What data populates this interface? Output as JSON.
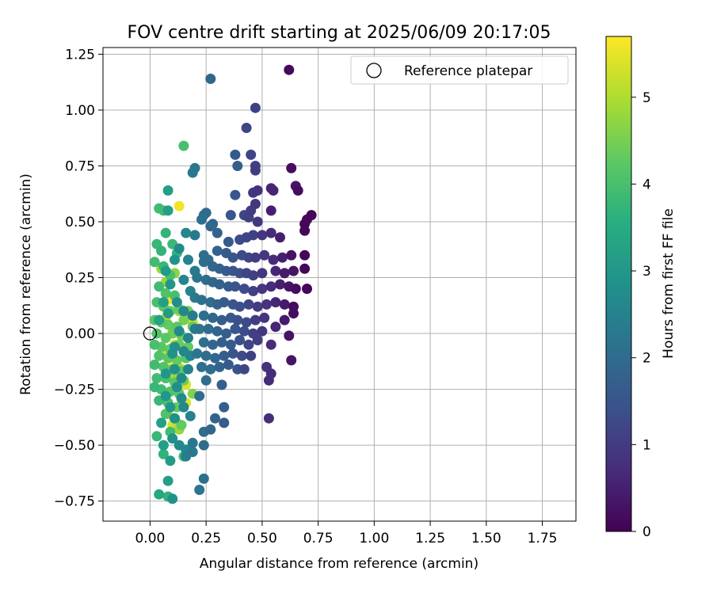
{
  "chart_data": {
    "type": "scatter",
    "title": "FOV centre drift starting at 2025/06/09 20:17:05",
    "xlabel": "Angular distance from reference (arcmin)",
    "ylabel": "Rotation from reference (arcmin)",
    "xlim": [
      -0.21,
      1.9
    ],
    "ylim": [
      -0.84,
      1.28
    ],
    "xticks": [
      0.0,
      0.25,
      0.5,
      0.75,
      1.0,
      1.25,
      1.5,
      1.75
    ],
    "xtick_labels": [
      "0.00",
      "0.25",
      "0.50",
      "0.75",
      "1.00",
      "1.25",
      "1.50",
      "1.75"
    ],
    "yticks": [
      -0.75,
      -0.5,
      -0.25,
      0.0,
      0.25,
      0.5,
      0.75,
      1.0,
      1.25
    ],
    "ytick_labels": [
      "−0.75",
      "−0.50",
      "−0.25",
      "0.00",
      "0.25",
      "0.50",
      "0.75",
      "1.00",
      "1.25"
    ],
    "grid": true,
    "legend": {
      "position": "top-right",
      "label": "Reference platepar"
    },
    "reference_point": {
      "x": 0.0,
      "y": 0.0
    },
    "colorbar": {
      "label": "Hours from first FF file",
      "min": 0,
      "max": 5.7,
      "ticks": [
        0,
        1,
        2,
        3,
        4,
        5
      ],
      "tick_labels": [
        "0",
        "1",
        "2",
        "3",
        "4",
        "5"
      ],
      "colormap": "viridis"
    },
    "points": [
      [
        0.62,
        1.18,
        0.15
      ],
      [
        0.27,
        1.14,
        1.9
      ],
      [
        0.47,
        1.01,
        1.1
      ],
      [
        0.43,
        0.92,
        1.2
      ],
      [
        0.38,
        0.8,
        1.6
      ],
      [
        0.45,
        0.8,
        1.2
      ],
      [
        0.39,
        0.75,
        1.7
      ],
      [
        0.47,
        0.75,
        1.1
      ],
      [
        0.47,
        0.73,
        1.0
      ],
      [
        0.63,
        0.74,
        0.2
      ],
      [
        0.65,
        0.66,
        0.3
      ],
      [
        0.66,
        0.64,
        0.2
      ],
      [
        0.55,
        0.64,
        0.6
      ],
      [
        0.54,
        0.65,
        0.6
      ],
      [
        0.48,
        0.64,
        0.8
      ],
      [
        0.46,
        0.63,
        0.9
      ],
      [
        0.38,
        0.62,
        1.5
      ],
      [
        0.47,
        0.58,
        0.9
      ],
      [
        0.45,
        0.55,
        1.0
      ],
      [
        0.44,
        0.52,
        1.1
      ],
      [
        0.48,
        0.5,
        0.9
      ],
      [
        0.54,
        0.55,
        0.5
      ],
      [
        0.36,
        0.53,
        1.5
      ],
      [
        0.42,
        0.53,
        1.2
      ],
      [
        0.25,
        0.54,
        2.0
      ],
      [
        0.23,
        0.51,
        2.1
      ],
      [
        0.28,
        0.49,
        1.9
      ],
      [
        0.3,
        0.45,
        1.8
      ],
      [
        0.35,
        0.41,
        1.6
      ],
      [
        0.4,
        0.42,
        1.3
      ],
      [
        0.43,
        0.43,
        1.2
      ],
      [
        0.46,
        0.44,
        1.1
      ],
      [
        0.5,
        0.44,
        0.9
      ],
      [
        0.54,
        0.45,
        0.7
      ],
      [
        0.58,
        0.43,
        0.5
      ],
      [
        0.72,
        0.53,
        0.1
      ],
      [
        0.7,
        0.51,
        0.1
      ],
      [
        0.69,
        0.49,
        0.1
      ],
      [
        0.69,
        0.46,
        0.1
      ],
      [
        0.3,
        0.37,
        1.8
      ],
      [
        0.34,
        0.36,
        1.6
      ],
      [
        0.37,
        0.34,
        1.5
      ],
      [
        0.41,
        0.35,
        1.3
      ],
      [
        0.44,
        0.34,
        1.2
      ],
      [
        0.47,
        0.34,
        1.0
      ],
      [
        0.51,
        0.35,
        0.9
      ],
      [
        0.55,
        0.33,
        0.7
      ],
      [
        0.59,
        0.34,
        0.5
      ],
      [
        0.63,
        0.35,
        0.3
      ],
      [
        0.69,
        0.35,
        0.1
      ],
      [
        0.26,
        0.33,
        2.0
      ],
      [
        0.24,
        0.32,
        2.1
      ],
      [
        0.28,
        0.3,
        1.9
      ],
      [
        0.31,
        0.29,
        1.8
      ],
      [
        0.34,
        0.28,
        1.6
      ],
      [
        0.37,
        0.28,
        1.5
      ],
      [
        0.4,
        0.27,
        1.4
      ],
      [
        0.43,
        0.27,
        1.2
      ],
      [
        0.46,
        0.26,
        1.1
      ],
      [
        0.5,
        0.27,
        0.9
      ],
      [
        0.56,
        0.28,
        0.6
      ],
      [
        0.6,
        0.27,
        0.4
      ],
      [
        0.64,
        0.28,
        0.3
      ],
      [
        0.69,
        0.29,
        0.1
      ],
      [
        0.21,
        0.25,
        2.2
      ],
      [
        0.25,
        0.24,
        2.0
      ],
      [
        0.28,
        0.23,
        1.9
      ],
      [
        0.31,
        0.22,
        1.8
      ],
      [
        0.35,
        0.21,
        1.6
      ],
      [
        0.38,
        0.21,
        1.5
      ],
      [
        0.42,
        0.2,
        1.3
      ],
      [
        0.46,
        0.19,
        1.1
      ],
      [
        0.5,
        0.2,
        0.9
      ],
      [
        0.54,
        0.21,
        0.7
      ],
      [
        0.58,
        0.22,
        0.5
      ],
      [
        0.62,
        0.21,
        0.3
      ],
      [
        0.65,
        0.2,
        0.2
      ],
      [
        0.7,
        0.2,
        0.1
      ],
      [
        0.2,
        0.16,
        2.3
      ],
      [
        0.23,
        0.15,
        2.1
      ],
      [
        0.27,
        0.14,
        2.0
      ],
      [
        0.3,
        0.13,
        1.8
      ],
      [
        0.33,
        0.14,
        1.7
      ],
      [
        0.37,
        0.13,
        1.5
      ],
      [
        0.4,
        0.12,
        1.4
      ],
      [
        0.44,
        0.13,
        1.2
      ],
      [
        0.48,
        0.12,
        1.0
      ],
      [
        0.52,
        0.13,
        0.8
      ],
      [
        0.56,
        0.14,
        0.6
      ],
      [
        0.6,
        0.13,
        0.4
      ],
      [
        0.64,
        0.12,
        0.2
      ],
      [
        0.24,
        0.08,
        2.1
      ],
      [
        0.28,
        0.07,
        1.9
      ],
      [
        0.32,
        0.06,
        1.7
      ],
      [
        0.36,
        0.07,
        1.6
      ],
      [
        0.39,
        0.06,
        1.4
      ],
      [
        0.43,
        0.05,
        1.3
      ],
      [
        0.47,
        0.06,
        1.0
      ],
      [
        0.51,
        0.07,
        0.8
      ],
      [
        0.56,
        0.03,
        0.6
      ],
      [
        0.6,
        0.06,
        0.4
      ],
      [
        0.64,
        0.09,
        0.2
      ],
      [
        0.22,
        0.02,
        2.2
      ],
      [
        0.26,
        0.02,
        2.0
      ],
      [
        0.3,
        0.01,
        1.8
      ],
      [
        0.34,
        0.0,
        1.7
      ],
      [
        0.38,
        0.02,
        1.5
      ],
      [
        0.42,
        0.01,
        1.3
      ],
      [
        0.46,
        0.0,
        1.1
      ],
      [
        0.5,
        0.01,
        0.9
      ],
      [
        0.62,
        -0.01,
        0.3
      ],
      [
        0.24,
        -0.04,
        2.1
      ],
      [
        0.28,
        -0.05,
        1.9
      ],
      [
        0.32,
        -0.04,
        1.7
      ],
      [
        0.36,
        -0.05,
        1.6
      ],
      [
        0.4,
        -0.03,
        1.4
      ],
      [
        0.44,
        -0.05,
        1.2
      ],
      [
        0.48,
        -0.03,
        1.0
      ],
      [
        0.54,
        -0.05,
        0.7
      ],
      [
        0.21,
        -0.09,
        2.2
      ],
      [
        0.25,
        -0.1,
        2.0
      ],
      [
        0.29,
        -0.11,
        1.9
      ],
      [
        0.33,
        -0.1,
        1.7
      ],
      [
        0.37,
        -0.09,
        1.5
      ],
      [
        0.41,
        -0.1,
        1.3
      ],
      [
        0.45,
        -0.1,
        1.1
      ],
      [
        0.23,
        -0.15,
        2.1
      ],
      [
        0.27,
        -0.16,
        2.0
      ],
      [
        0.31,
        -0.15,
        1.8
      ],
      [
        0.35,
        -0.14,
        1.6
      ],
      [
        0.39,
        -0.16,
        1.4
      ],
      [
        0.42,
        -0.16,
        1.2
      ],
      [
        0.52,
        -0.15,
        0.8
      ],
      [
        0.63,
        -0.12,
        0.3
      ],
      [
        0.54,
        -0.18,
        0.7
      ],
      [
        0.25,
        -0.21,
        2.0
      ],
      [
        0.32,
        -0.23,
        1.7
      ],
      [
        0.53,
        -0.21,
        0.7
      ],
      [
        0.22,
        -0.28,
        2.1
      ],
      [
        0.33,
        -0.33,
        1.7
      ],
      [
        0.53,
        -0.38,
        0.7
      ],
      [
        0.29,
        -0.38,
        1.8
      ],
      [
        0.33,
        -0.4,
        1.6
      ],
      [
        0.24,
        -0.44,
        2.0
      ],
      [
        0.27,
        -0.43,
        1.9
      ],
      [
        0.19,
        -0.49,
        2.2
      ],
      [
        0.24,
        -0.5,
        2.0
      ],
      [
        0.19,
        -0.53,
        2.3
      ],
      [
        0.16,
        -0.55,
        2.4
      ],
      [
        0.24,
        -0.65,
        2.1
      ],
      [
        0.22,
        -0.7,
        2.2
      ],
      [
        0.16,
        -0.52,
        2.6
      ],
      [
        0.13,
        -0.5,
        2.7
      ],
      [
        0.1,
        -0.47,
        2.9
      ],
      [
        0.18,
        -0.37,
        2.5
      ],
      [
        0.15,
        -0.33,
        2.6
      ],
      [
        0.11,
        -0.38,
        2.8
      ],
      [
        0.14,
        -0.29,
        2.7
      ],
      [
        0.09,
        -0.33,
        3.0
      ],
      [
        0.05,
        -0.4,
        3.2
      ],
      [
        0.07,
        -0.28,
        3.0
      ],
      [
        0.14,
        -0.2,
        2.7
      ],
      [
        0.11,
        -0.16,
        2.8
      ],
      [
        0.17,
        -0.16,
        2.5
      ],
      [
        0.07,
        -0.18,
        3.0
      ],
      [
        0.18,
        -0.1,
        2.5
      ],
      [
        0.15,
        -0.08,
        2.6
      ],
      [
        0.11,
        -0.06,
        2.8
      ],
      [
        0.17,
        -0.02,
        2.5
      ],
      [
        0.13,
        0.01,
        2.7
      ],
      [
        0.2,
        0.02,
        2.3
      ],
      [
        0.15,
        0.1,
        2.6
      ],
      [
        0.19,
        0.08,
        2.4
      ],
      [
        0.12,
        0.14,
        2.8
      ],
      [
        0.18,
        0.19,
        2.5
      ],
      [
        0.15,
        0.24,
        2.6
      ],
      [
        0.2,
        0.28,
        2.3
      ],
      [
        0.17,
        0.33,
        2.5
      ],
      [
        0.13,
        0.38,
        2.7
      ],
      [
        0.16,
        0.45,
        2.6
      ],
      [
        0.2,
        0.44,
        2.3
      ],
      [
        0.19,
        0.72,
        2.3
      ],
      [
        0.2,
        0.74,
        2.3
      ],
      [
        0.24,
        0.53,
        2.1
      ],
      [
        0.27,
        0.48,
        1.9
      ],
      [
        0.24,
        0.35,
        2.1
      ],
      [
        0.08,
        0.55,
        3.2
      ],
      [
        0.08,
        0.64,
        3.2
      ],
      [
        0.11,
        0.33,
        2.9
      ],
      [
        0.07,
        0.28,
        3.1
      ],
      [
        0.09,
        0.22,
        3.0
      ],
      [
        0.06,
        0.14,
        3.2
      ],
      [
        0.08,
        0.09,
        3.1
      ],
      [
        0.04,
        0.06,
        3.3
      ],
      [
        0.1,
        -0.09,
        2.9
      ],
      [
        0.12,
        -0.24,
        2.8
      ],
      [
        0.06,
        -0.5,
        3.2
      ],
      [
        0.08,
        -0.66,
        3.2
      ],
      [
        0.04,
        -0.72,
        3.4
      ],
      [
        0.1,
        -0.74,
        2.9
      ],
      [
        0.09,
        -0.57,
        3.1
      ],
      [
        0.15,
        0.84,
        4.0
      ],
      [
        0.04,
        0.56,
        3.9
      ],
      [
        0.06,
        0.55,
        3.9
      ],
      [
        0.07,
        0.45,
        3.7
      ],
      [
        0.03,
        0.4,
        3.8
      ],
      [
        0.05,
        0.37,
        3.7
      ],
      [
        0.1,
        0.4,
        3.8
      ],
      [
        0.12,
        0.36,
        3.7
      ],
      [
        0.02,
        0.32,
        3.9
      ],
      [
        0.06,
        0.3,
        3.8
      ],
      [
        0.09,
        0.26,
        4.0
      ],
      [
        0.04,
        0.21,
        3.9
      ],
      [
        0.07,
        0.18,
        4.1
      ],
      [
        0.11,
        0.17,
        4.0
      ],
      [
        0.03,
        0.14,
        4.0
      ],
      [
        0.06,
        0.12,
        4.2
      ],
      [
        0.09,
        0.1,
        4.3
      ],
      [
        0.13,
        0.11,
        4.3
      ],
      [
        0.17,
        0.1,
        4.4
      ],
      [
        0.02,
        0.06,
        4.2
      ],
      [
        0.05,
        0.05,
        4.2
      ],
      [
        0.08,
        0.04,
        4.3
      ],
      [
        0.12,
        0.03,
        4.2
      ],
      [
        0.15,
        0.06,
        4.5
      ],
      [
        0.19,
        0.03,
        4.3
      ],
      [
        0.03,
        0.0,
        4.1
      ],
      [
        0.07,
        -0.02,
        4.2
      ],
      [
        0.1,
        0.0,
        4.4
      ],
      [
        0.14,
        -0.01,
        4.4
      ],
      [
        0.02,
        -0.05,
        4.0
      ],
      [
        0.05,
        -0.06,
        4.2
      ],
      [
        0.09,
        -0.07,
        4.3
      ],
      [
        0.13,
        -0.05,
        4.4
      ],
      [
        0.17,
        -0.06,
        4.3
      ],
      [
        0.04,
        -0.1,
        4.1
      ],
      [
        0.08,
        -0.11,
        4.2
      ],
      [
        0.12,
        -0.12,
        4.3
      ],
      [
        0.16,
        -0.11,
        4.2
      ],
      [
        0.02,
        -0.14,
        3.9
      ],
      [
        0.06,
        -0.15,
        4.1
      ],
      [
        0.1,
        -0.16,
        4.2
      ],
      [
        0.14,
        -0.17,
        4.2
      ],
      [
        0.03,
        -0.2,
        3.9
      ],
      [
        0.07,
        -0.2,
        4.0
      ],
      [
        0.11,
        -0.22,
        4.2
      ],
      [
        0.15,
        -0.21,
        4.4
      ],
      [
        0.02,
        -0.24,
        3.8
      ],
      [
        0.05,
        -0.25,
        3.9
      ],
      [
        0.09,
        -0.26,
        4.1
      ],
      [
        0.13,
        -0.27,
        4.2
      ],
      [
        0.19,
        -0.27,
        4.6
      ],
      [
        0.04,
        -0.3,
        3.8
      ],
      [
        0.08,
        -0.31,
        4.0
      ],
      [
        0.12,
        -0.33,
        4.3
      ],
      [
        0.07,
        -0.36,
        4.1
      ],
      [
        0.11,
        -0.38,
        4.3
      ],
      [
        0.14,
        -0.41,
        4.3
      ],
      [
        0.09,
        -0.44,
        3.9
      ],
      [
        0.03,
        -0.46,
        3.8
      ],
      [
        0.06,
        -0.54,
        3.7
      ],
      [
        0.15,
        -0.55,
        3.9
      ],
      [
        0.08,
        -0.73,
        3.7
      ],
      [
        0.11,
        0.27,
        4.7
      ],
      [
        0.07,
        0.23,
        4.8
      ],
      [
        0.05,
        0.29,
        4.9
      ],
      [
        0.08,
        0.15,
        5.6
      ],
      [
        0.13,
        0.1,
        4.8
      ],
      [
        0.07,
        0.07,
        5.3
      ],
      [
        0.16,
        0.08,
        5.2
      ],
      [
        0.19,
        0.05,
        5.2
      ],
      [
        0.2,
        0.03,
        5.5
      ],
      [
        0.1,
        0.02,
        5.0
      ],
      [
        0.11,
        -0.05,
        5.2
      ],
      [
        0.08,
        -0.09,
        5.1
      ],
      [
        0.12,
        -0.14,
        5.6
      ],
      [
        0.09,
        -0.13,
        5.7
      ],
      [
        0.14,
        -0.16,
        5.0
      ],
      [
        0.16,
        -0.23,
        5.4
      ],
      [
        0.1,
        -0.2,
        5.0
      ],
      [
        0.12,
        -0.19,
        4.8
      ],
      [
        0.08,
        -0.36,
        5.0
      ],
      [
        0.16,
        -0.31,
        5.4
      ],
      [
        0.12,
        -0.4,
        5.1
      ],
      [
        0.13,
        -0.43,
        4.8
      ],
      [
        0.1,
        -0.41,
        5.4
      ],
      [
        0.13,
        0.57,
        5.6
      ]
    ]
  }
}
